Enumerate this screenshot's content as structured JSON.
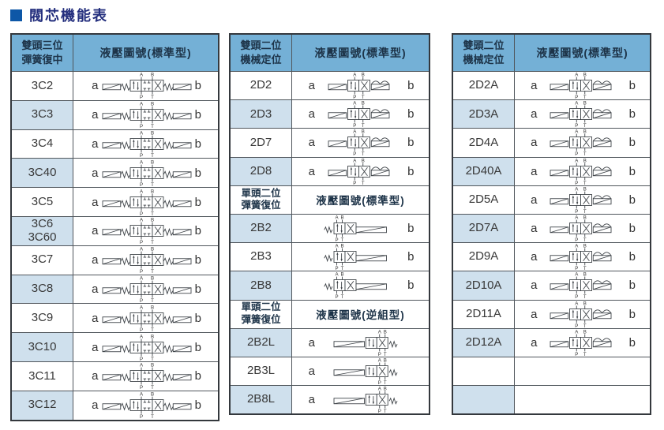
{
  "title": "閥芯機能表",
  "colors": {
    "header_bg": "#74b0d6",
    "header_text": "#1d3348",
    "alt_row_bg": "#cfe0ed",
    "border": "#34383d",
    "grid": "#50565c",
    "title_square": "#0d57a7",
    "title_text": "#232e7d",
    "text": "#333333",
    "symbol_stroke": "#3c4146"
  },
  "tables": [
    {
      "id": "double-head-3pos-spring-centered",
      "header": {
        "col1": "雙頭三位\n彈簧復中",
        "col2": "液壓圖號(標準型)"
      },
      "rows": [
        {
          "type": "item",
          "model": "3C2",
          "a": "a",
          "b": "b",
          "sym": "sol3"
        },
        {
          "type": "item",
          "model": "3C3",
          "a": "a",
          "b": "b",
          "sym": "sol3"
        },
        {
          "type": "item",
          "model": "3C4",
          "a": "a",
          "b": "b",
          "sym": "sol3"
        },
        {
          "type": "item",
          "model": "3C40",
          "a": "a",
          "b": "b",
          "sym": "sol3"
        },
        {
          "type": "item",
          "model": "3C5",
          "a": "a",
          "b": "b",
          "sym": "sol3"
        },
        {
          "type": "item",
          "model": "3C6\n3C60",
          "a": "a",
          "b": "b",
          "sym": "sol3"
        },
        {
          "type": "item",
          "model": "3C7",
          "a": "a",
          "b": "b",
          "sym": "sol3"
        },
        {
          "type": "item",
          "model": "3C8",
          "a": "a",
          "b": "b",
          "sym": "sol3"
        },
        {
          "type": "item",
          "model": "3C9",
          "a": "a",
          "b": "b",
          "sym": "sol3"
        },
        {
          "type": "item",
          "model": "3C10",
          "a": "a",
          "b": "b",
          "sym": "sol3"
        },
        {
          "type": "item",
          "model": "3C11",
          "a": "a",
          "b": "b",
          "sym": "sol3"
        },
        {
          "type": "item",
          "model": "3C12",
          "a": "a",
          "b": "b",
          "sym": "sol3"
        }
      ]
    },
    {
      "id": "double-head-2pos-mechanical-detent",
      "header": {
        "col1": "雙頭二位\n機械定位",
        "col2": "液壓圖號(標準型)"
      },
      "rows": [
        {
          "type": "item",
          "model": "2D2",
          "a": "a",
          "b": "b",
          "sym": "det2"
        },
        {
          "type": "item",
          "model": "2D3",
          "a": "a",
          "b": "b",
          "sym": "det2"
        },
        {
          "type": "item",
          "model": "2D7",
          "a": "a",
          "b": "b",
          "sym": "det2"
        },
        {
          "type": "item",
          "model": "2D8",
          "a": "a",
          "b": "b",
          "sym": "det2"
        },
        {
          "type": "subheader",
          "col1": "單頭二位\n彈簧復位",
          "col2": "液壓圖號(標準型)"
        },
        {
          "type": "item",
          "model": "2B2",
          "a": "",
          "b": "b",
          "sym": "b2"
        },
        {
          "type": "item",
          "model": "2B3",
          "a": "",
          "b": "b",
          "sym": "b2"
        },
        {
          "type": "item",
          "model": "2B8",
          "a": "",
          "b": "b",
          "sym": "b2"
        },
        {
          "type": "subheader",
          "col1": "單頭二位\n彈簧復位",
          "col2": "液壓圖號(逆組型)"
        },
        {
          "type": "item",
          "model": "2B2L",
          "a": "a",
          "b": "",
          "sym": "b2l"
        },
        {
          "type": "item",
          "model": "2B3L",
          "a": "a",
          "b": "",
          "sym": "b2l"
        },
        {
          "type": "item",
          "model": "2B8L",
          "a": "a",
          "b": "",
          "sym": "b2l"
        }
      ]
    },
    {
      "id": "double-head-2pos-mechanical-detent-a",
      "header": {
        "col1": "雙頭二位\n機械定位",
        "col2": "液壓圖號(標準型)"
      },
      "rows": [
        {
          "type": "item",
          "model": "2D2A",
          "a": "a",
          "b": "b",
          "sym": "det2"
        },
        {
          "type": "item",
          "model": "2D3A",
          "a": "a",
          "b": "b",
          "sym": "det2"
        },
        {
          "type": "item",
          "model": "2D4A",
          "a": "a",
          "b": "b",
          "sym": "det2"
        },
        {
          "type": "item",
          "model": "2D40A",
          "a": "a",
          "b": "b",
          "sym": "det2"
        },
        {
          "type": "item",
          "model": "2D5A",
          "a": "a",
          "b": "b",
          "sym": "det2"
        },
        {
          "type": "item",
          "model": "2D7A",
          "a": "a",
          "b": "b",
          "sym": "det2"
        },
        {
          "type": "item",
          "model": "2D9A",
          "a": "a",
          "b": "b",
          "sym": "det2"
        },
        {
          "type": "item",
          "model": "2D10A",
          "a": "a",
          "b": "b",
          "sym": "det2"
        },
        {
          "type": "item",
          "model": "2D11A",
          "a": "a",
          "b": "b",
          "sym": "det2"
        },
        {
          "type": "item",
          "model": "2D12A",
          "a": "a",
          "b": "b",
          "sym": "det2"
        },
        {
          "type": "item",
          "model": "",
          "a": "",
          "b": "",
          "sym": ""
        },
        {
          "type": "item",
          "model": "",
          "a": "",
          "b": "",
          "sym": ""
        }
      ]
    }
  ]
}
